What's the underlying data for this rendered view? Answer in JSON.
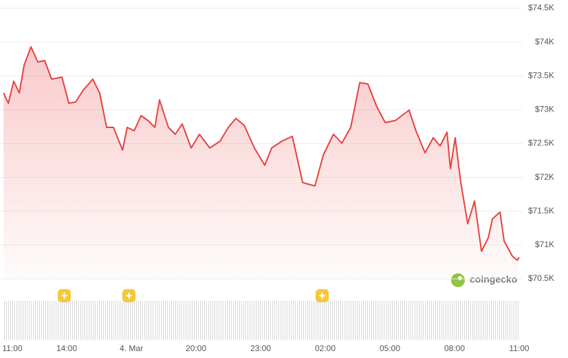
{
  "chart_data": {
    "type": "line",
    "color": "#e8403f",
    "grid": true,
    "watermark": "coingecko",
    "xlim": [
      0,
      24
    ],
    "xticks": [
      {
        "value": 0,
        "label": "11:00"
      },
      {
        "value": 3,
        "label": "14:00"
      },
      {
        "value": 6,
        "label": "4. Mar"
      },
      {
        "value": 9,
        "label": "20:00"
      },
      {
        "value": 12,
        "label": "23:00"
      },
      {
        "value": 15,
        "label": "02:00"
      },
      {
        "value": 18,
        "label": "05:00"
      },
      {
        "value": 21,
        "label": "08:00"
      },
      {
        "value": 24,
        "label": "11:00"
      }
    ],
    "ylim": [
      70500,
      74500
    ],
    "yticks": [
      {
        "value": 70500,
        "label": "$70.5K"
      },
      {
        "value": 71000,
        "label": "$71K"
      },
      {
        "value": 71500,
        "label": "$71.5K"
      },
      {
        "value": 72000,
        "label": "$72K"
      },
      {
        "value": 72500,
        "label": "$72.5K"
      },
      {
        "value": 73000,
        "label": "$73K"
      },
      {
        "value": 73500,
        "label": "$73.5K"
      },
      {
        "value": 74000,
        "label": "$74K"
      },
      {
        "value": 74500,
        "label": "$74.5K"
      }
    ],
    "x": [
      0.07,
      0.29,
      0.54,
      0.8,
      1.02,
      1.34,
      1.66,
      1.98,
      2.3,
      2.78,
      3.1,
      3.42,
      3.74,
      4.21,
      4.53,
      4.85,
      5.17,
      5.59,
      5.81,
      6.13,
      6.45,
      6.77,
      7.09,
      7.31,
      7.72,
      8.04,
      8.36,
      8.78,
      9.16,
      9.64,
      10.12,
      10.5,
      10.85,
      11.24,
      11.71,
      12.19,
      12.51,
      12.99,
      13.47,
      13.95,
      14.27,
      14.52,
      14.91,
      15.38,
      15.77,
      16.18,
      16.6,
      16.98,
      17.39,
      17.78,
      18.26,
      18.89,
      19.21,
      19.63,
      20.01,
      20.33,
      20.65,
      20.81,
      21.03,
      21.29,
      21.61,
      21.93,
      22.25,
      22.57,
      22.76,
      23.11,
      23.3,
      23.68,
      23.91,
      24.0
    ],
    "values": [
      73248,
      73095,
      73421,
      73248,
      73655,
      73930,
      73706,
      73726,
      73452,
      73482,
      73095,
      73116,
      73279,
      73452,
      73248,
      72739,
      72739,
      72403,
      72739,
      72688,
      72912,
      72841,
      72739,
      73146,
      72739,
      72637,
      72790,
      72434,
      72637,
      72434,
      72536,
      72739,
      72871,
      72770,
      72434,
      72179,
      72434,
      72536,
      72607,
      71925,
      71894,
      71874,
      72332,
      72637,
      72505,
      72739,
      73401,
      73380,
      73045,
      72810,
      72841,
      72994,
      72688,
      72363,
      72586,
      72464,
      72668,
      72128,
      72586,
      71925,
      71314,
      71650,
      70907,
      71111,
      71385,
      71487,
      71060,
      70836,
      70775,
      70816
    ]
  }
}
